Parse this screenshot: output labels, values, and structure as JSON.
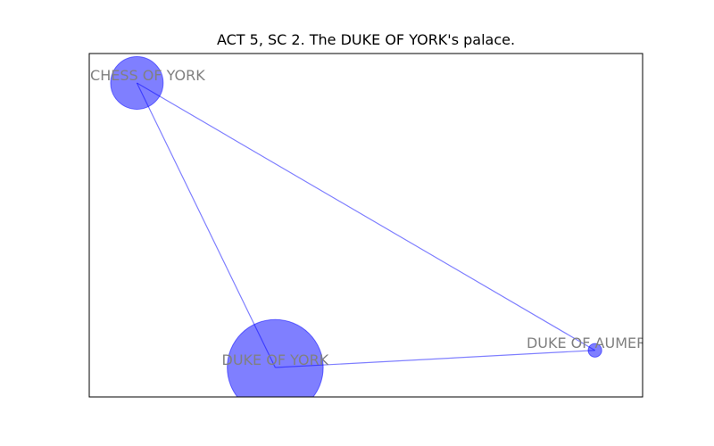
{
  "title": "ACT 5, SC 2. The DUKE OF YORK's palace.",
  "colors": {
    "node_fill": "#0000ff",
    "edge_stroke": "#0000ff",
    "label": "#808080",
    "frame": "#000000"
  },
  "chart_data": {
    "type": "network",
    "title": "ACT 5, SC 2. The DUKE OF YORK's palace.",
    "nodes": [
      {
        "id": "duchess",
        "label": "DUCHESS OF YORK",
        "x": 0.0861,
        "y": 0.9143,
        "size": 3
      },
      {
        "id": "york",
        "label": "DUKE OF YORK",
        "x": 0.3361,
        "y": 0.0857,
        "size": 10
      },
      {
        "id": "aumerle",
        "label": "DUKE OF AUMERLE",
        "x": 0.9139,
        "y": 0.1357,
        "size": 0.2
      }
    ],
    "edges": [
      {
        "source": "duchess",
        "target": "york"
      },
      {
        "source": "duchess",
        "target": "aumerle"
      },
      {
        "source": "york",
        "target": "aumerle"
      }
    ]
  }
}
